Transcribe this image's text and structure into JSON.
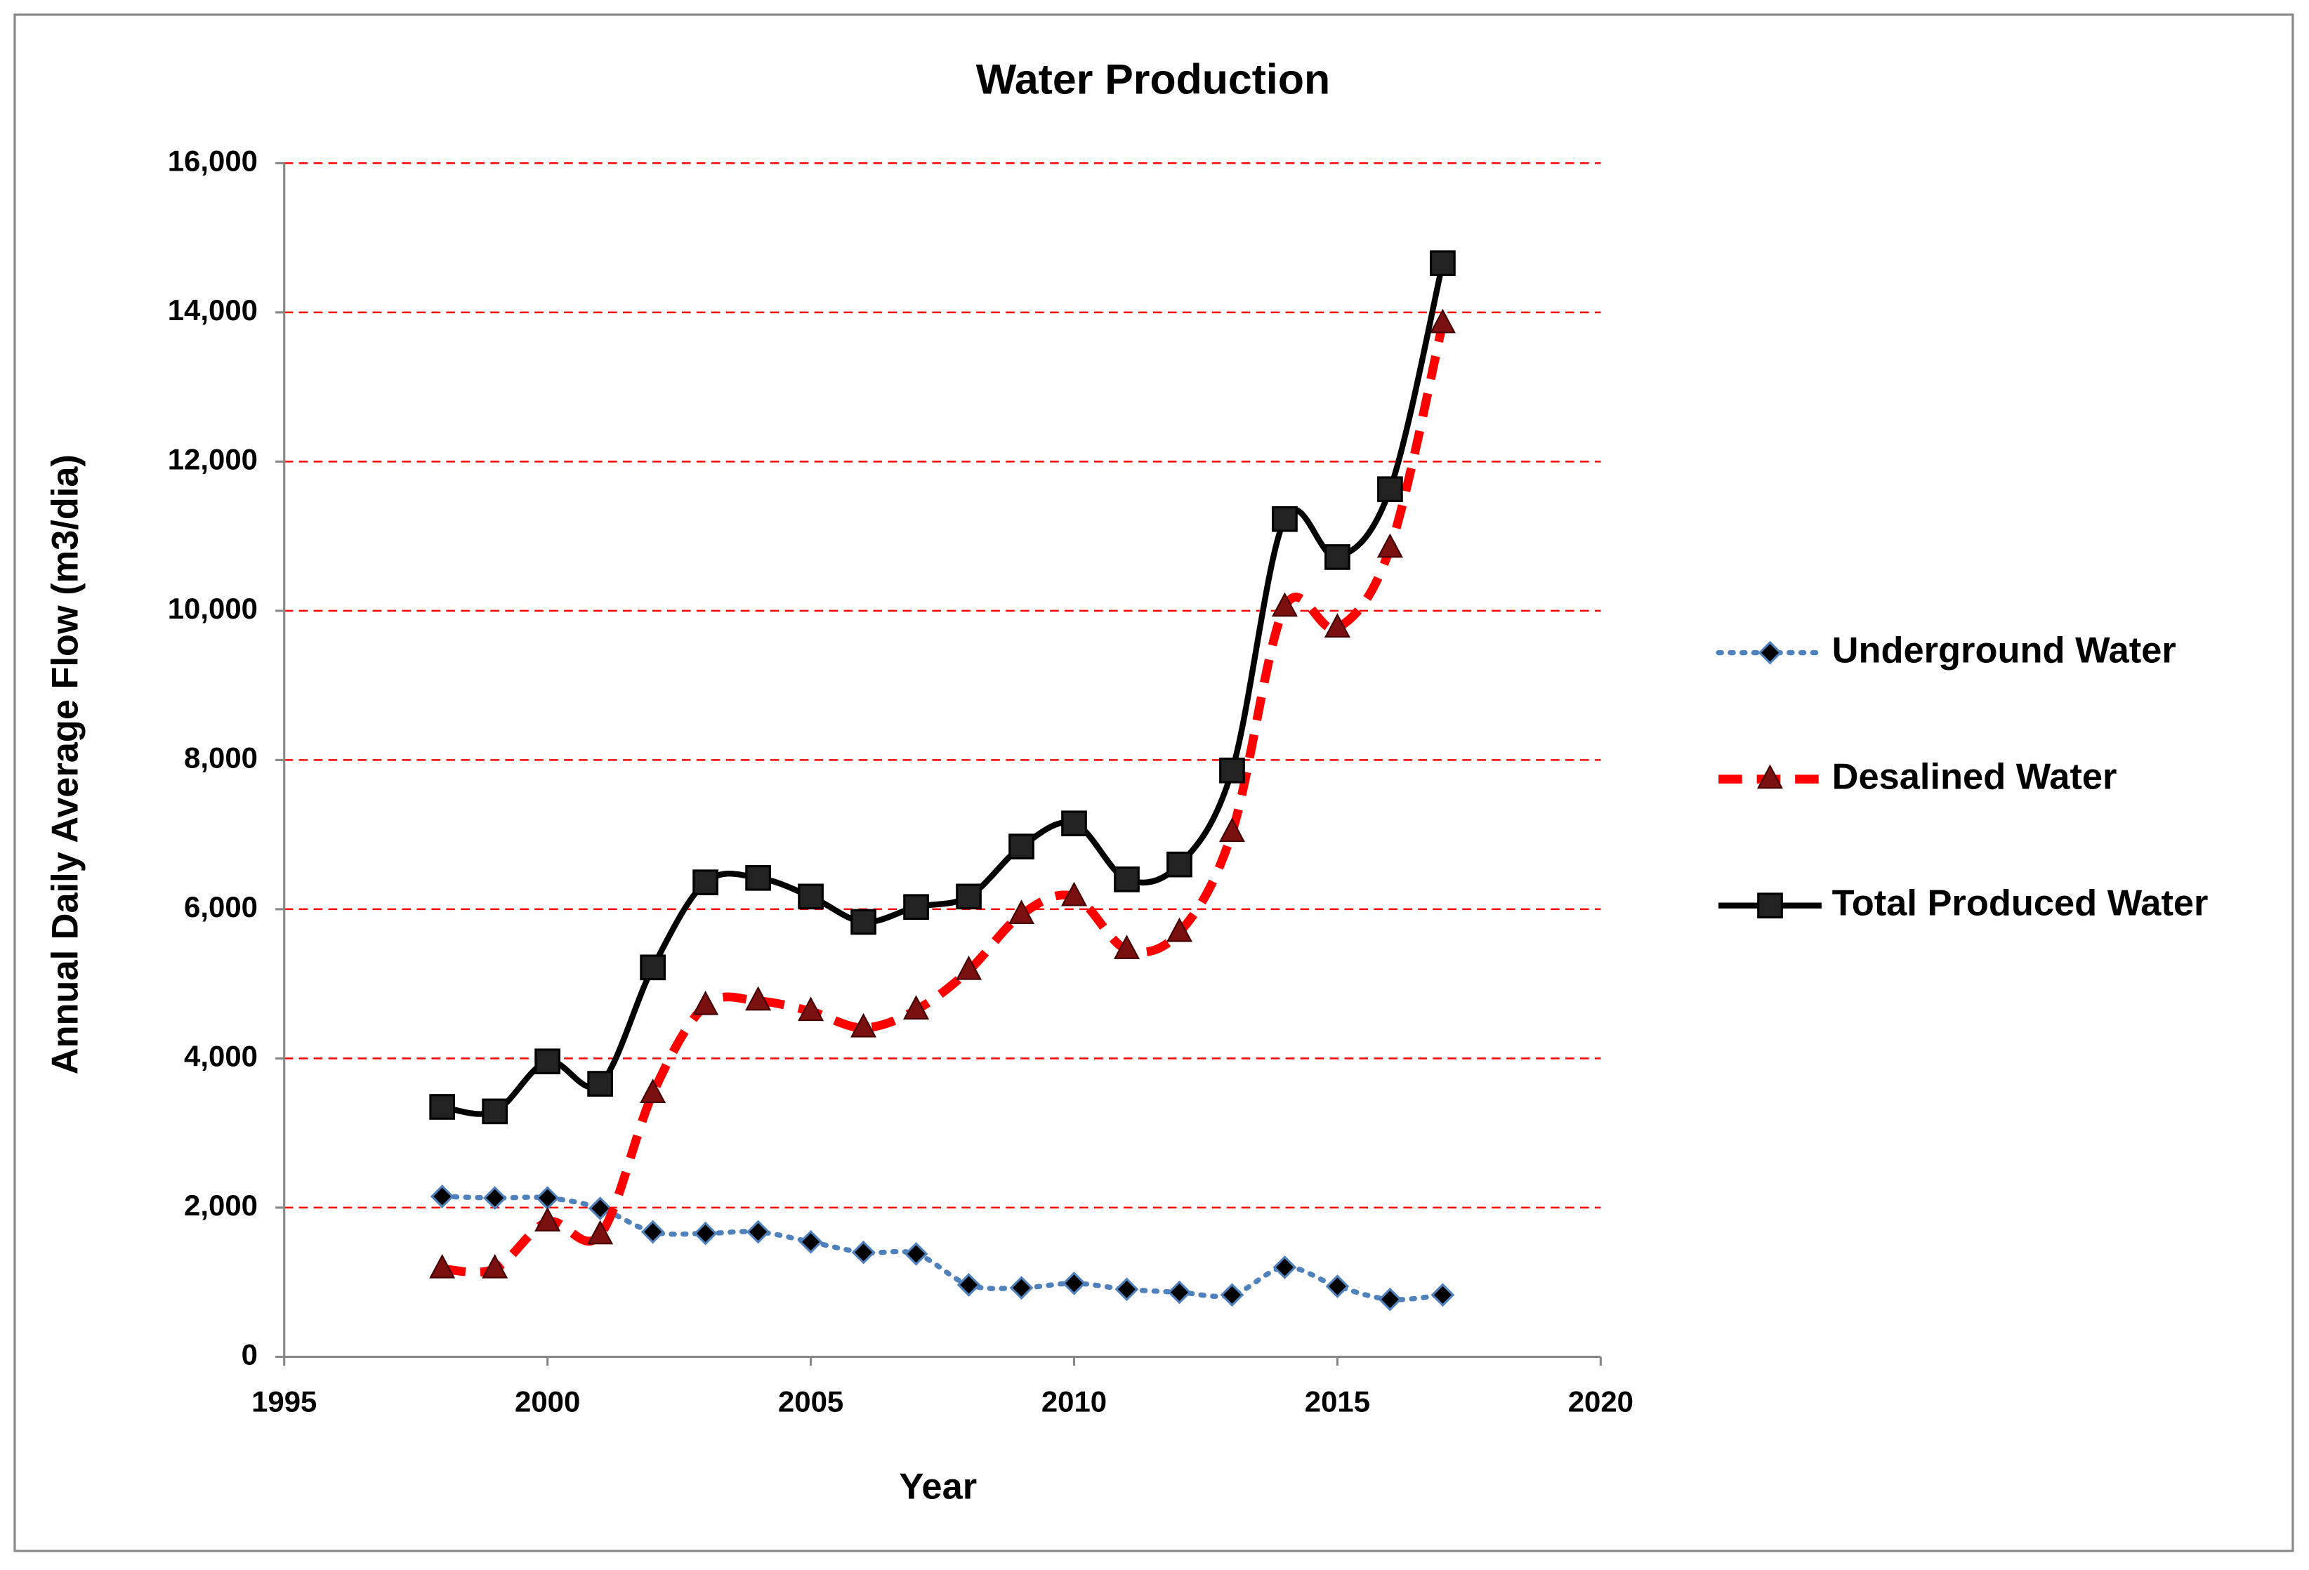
{
  "chart_data": {
    "type": "line",
    "title": "Water Production",
    "xlabel": "Year",
    "ylabel": "Annual Daily Average Flow (m3/dia)",
    "x": [
      1998,
      1999,
      2000,
      2001,
      2002,
      2003,
      2004,
      2005,
      2006,
      2007,
      2008,
      2009,
      2010,
      2011,
      2012,
      2013,
      2014,
      2015,
      2016,
      2017
    ],
    "series": [
      {
        "name": "Underground Water",
        "color": "#4f81bd",
        "marker": "diamond",
        "line_style": "dotted",
        "values": [
          2150,
          2130,
          2130,
          1990,
          1675,
          1655,
          1675,
          1540,
          1400,
          1380,
          965,
          925,
          985,
          905,
          865,
          830,
          1200,
          945,
          770,
          830
        ]
      },
      {
        "name": "Desalined Water",
        "color": "#ff0000",
        "marker": "triangle",
        "line_style": "dashed",
        "values": [
          1180,
          1180,
          1810,
          1635,
          3530,
          4710,
          4770,
          4630,
          4410,
          4650,
          5180,
          5930,
          6170,
          5460,
          5690,
          7030,
          10050,
          9770,
          10840,
          13850
        ]
      },
      {
        "name": "Total Produced Water",
        "color": "#000000",
        "marker": "square",
        "line_style": "solid",
        "values": [
          3350,
          3290,
          3960,
          3660,
          5220,
          6360,
          6420,
          6170,
          5830,
          6030,
          6170,
          6840,
          7150,
          6400,
          6600,
          7860,
          11230,
          10720,
          11630,
          14660
        ]
      }
    ],
    "xlim": [
      1995,
      2020
    ],
    "xticks": [
      1995,
      2000,
      2005,
      2010,
      2015,
      2020
    ],
    "ylim": [
      0,
      16000
    ],
    "yticks": [
      0,
      {
        "value": 2000,
        "label": "2,000"
      },
      {
        "value": 4000,
        "label": "4,000"
      },
      {
        "value": 6000,
        "label": "6,000"
      },
      {
        "value": 8000,
        "label": "8,000"
      },
      {
        "value": 10000,
        "label": "10,000"
      },
      {
        "value": 12000,
        "label": "12,000"
      },
      {
        "value": 14000,
        "label": "14,000"
      },
      {
        "value": 16000,
        "label": "16,000"
      }
    ],
    "grid": true,
    "grid_color": "#ff0000",
    "smooth": true,
    "legend": "right"
  }
}
